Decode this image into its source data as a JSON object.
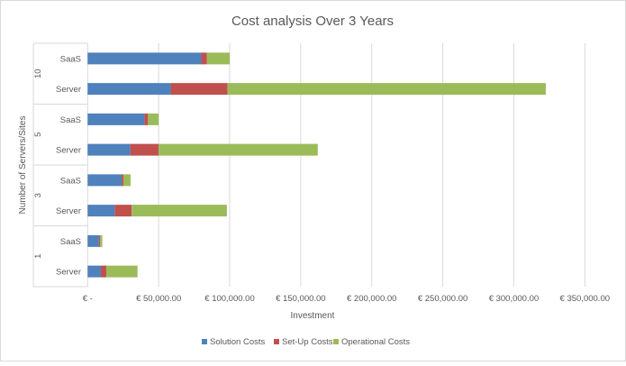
{
  "chart_data": {
    "type": "bar",
    "orientation": "horizontal",
    "stacked": true,
    "title": "Cost analysis Over 3 Years",
    "xlabel": "Investment",
    "ylabel": "Number of Servers/Sites",
    "xlim": [
      0,
      350000
    ],
    "x_ticks": [
      0,
      50000,
      100000,
      150000,
      200000,
      250000,
      300000,
      350000
    ],
    "x_tick_labels": [
      "€ -",
      "€ 50,000.00",
      "€ 100,000.00",
      "€ 150,000.00",
      "€ 200,000.00",
      "€ 250,000.00",
      "€ 300,000.00",
      "€ 350,000.00"
    ],
    "groups": [
      {
        "label": "10",
        "categories": [
          "SaaS",
          "Server"
        ]
      },
      {
        "label": "5",
        "categories": [
          "SaaS",
          "Server"
        ]
      },
      {
        "label": "3",
        "categories": [
          "SaaS",
          "Server"
        ]
      },
      {
        "label": "1",
        "categories": [
          "SaaS",
          "Server"
        ]
      }
    ],
    "categories": [
      "10 SaaS",
      "10 Server",
      "5 SaaS",
      "5 Server",
      "3 SaaS",
      "3 Server",
      "1 SaaS",
      "1 Server"
    ],
    "series": [
      {
        "name": "Solution Costs",
        "color": "#4f81bd",
        "values": [
          80000,
          58500,
          40000,
          30000,
          24000,
          19000,
          8000,
          9300
        ]
      },
      {
        "name": "Set-Up Costs",
        "color": "#c0504d",
        "values": [
          4000,
          40000,
          2500,
          20000,
          1200,
          12000,
          800,
          3800
        ]
      },
      {
        "name": "Operational Costs",
        "color": "#9bbb59",
        "values": [
          16000,
          224000,
          7500,
          112000,
          5000,
          67000,
          1500,
          22000
        ]
      }
    ],
    "grid": "vertical",
    "legend": "bottom"
  }
}
